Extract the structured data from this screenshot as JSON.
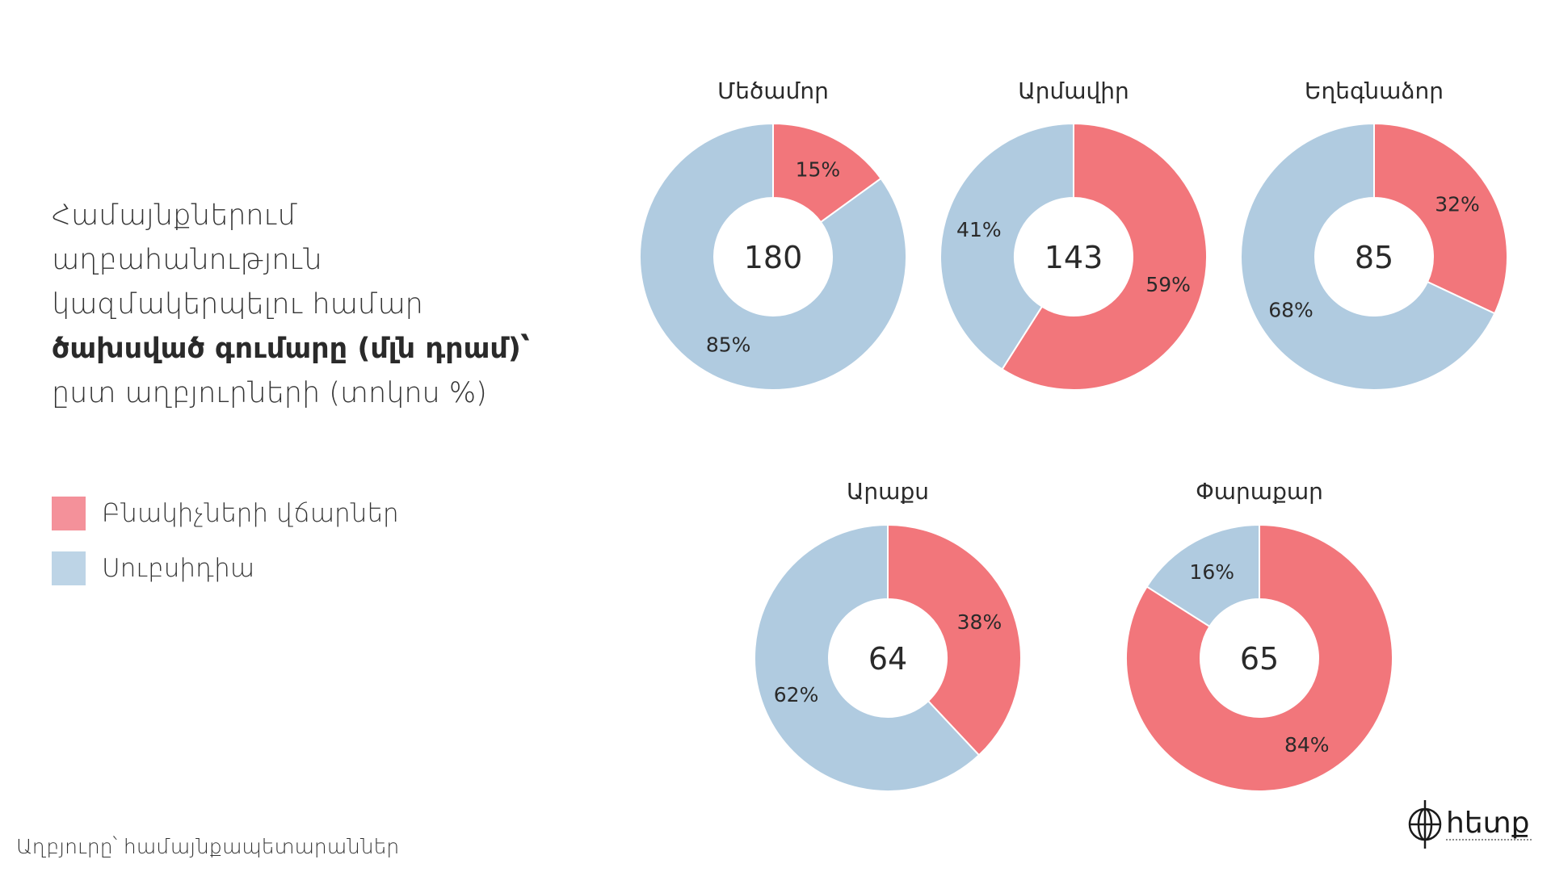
{
  "title_lines": [
    "Համայնքներում",
    "աղբահանություն",
    "կազմակերպելու համար",
    "ծախսված գումարը (մլն դրամ)՝",
    "ըստ աղբյուրների (տոկոս %)"
  ],
  "legend": [
    {
      "label": "Բնակիչների վճարներ",
      "color": "#f4919a"
    },
    {
      "label": "Սուբսիդիա",
      "color": "#bdd4e6"
    }
  ],
  "source": "Աղբյուրը՝ համայնքապետարաններ",
  "logo_text": "հետք",
  "colors": {
    "payments": "#f2767b",
    "subsidy": "#b0cbe0"
  },
  "chart_data": {
    "type": "donut",
    "series": [
      {
        "name": "Բնակիչների վճարներ",
        "color": "#f2767b"
      },
      {
        "name": "Սուբսիդիա",
        "color": "#b0cbe0"
      }
    ],
    "charts": [
      {
        "name": "Մեծամոր",
        "total": "180",
        "payments": 15,
        "subsidy": 85
      },
      {
        "name": "Արմավիր",
        "total": "143",
        "payments": 59,
        "subsidy": 41
      },
      {
        "name": "Եղեգնաձոր",
        "total": "85",
        "payments": 32,
        "subsidy": 68
      },
      {
        "name": "Արաքս",
        "total": "64",
        "payments": 38,
        "subsidy": 62
      },
      {
        "name": "Փարաքար",
        "total": "65",
        "payments": 84,
        "subsidy": 16
      }
    ]
  }
}
